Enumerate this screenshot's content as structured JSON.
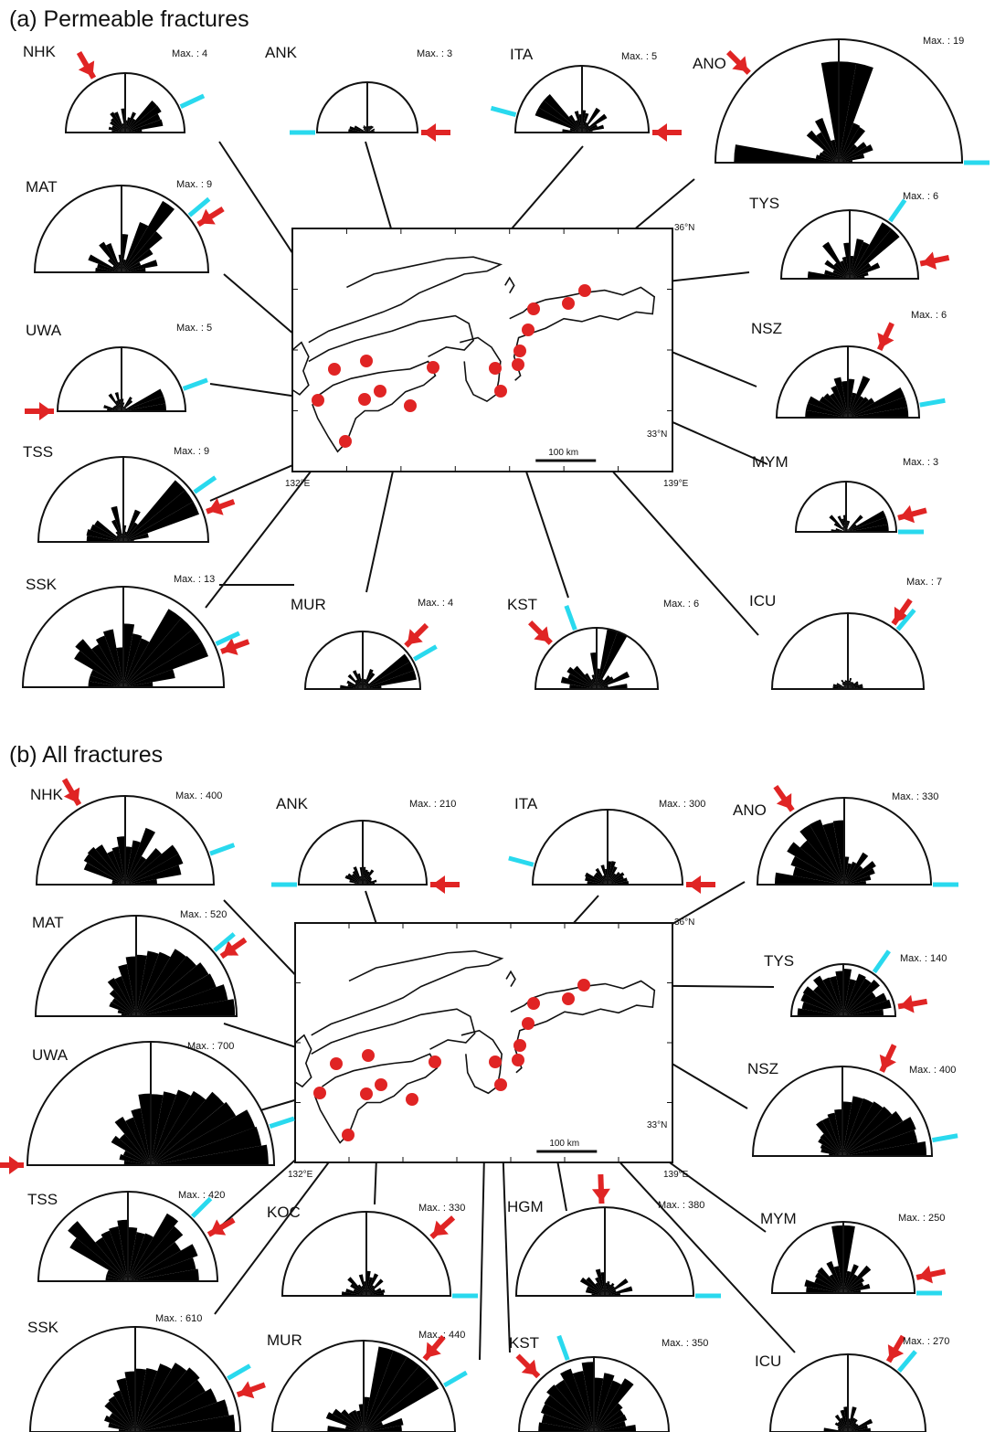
{
  "colors": {
    "arrow": "#e02424",
    "bar": "#29d9ee",
    "dot": "#e02424",
    "ink": "#111111"
  },
  "panels": [
    {
      "id": "a",
      "title": "(a)  Permeable fractures",
      "map": {
        "lat_top": "36°N",
        "lat_bottom": "33°N",
        "lon_left": "132°E",
        "lon_right": "139°E",
        "scale_label": "100 km"
      },
      "roses": [
        {
          "name": "NHK",
          "max": "Max. : 4"
        },
        {
          "name": "ANK",
          "max": "Max. : 3"
        },
        {
          "name": "ITA",
          "max": "Max. : 5"
        },
        {
          "name": "ANO",
          "max": "Max. : 19"
        },
        {
          "name": "MAT",
          "max": "Max. : 9"
        },
        {
          "name": "TYS",
          "max": "Max. : 6"
        },
        {
          "name": "UWA",
          "max": "Max. : 5"
        },
        {
          "name": "NSZ",
          "max": "Max. : 6"
        },
        {
          "name": "TSS",
          "max": "Max. : 9"
        },
        {
          "name": "MYM",
          "max": "Max. : 3"
        },
        {
          "name": "SSK",
          "max": "Max. : 13"
        },
        {
          "name": "MUR",
          "max": "Max. : 4"
        },
        {
          "name": "KST",
          "max": "Max. : 6"
        },
        {
          "name": "ICU",
          "max": "Max. : 7"
        }
      ]
    },
    {
      "id": "b",
      "title": "(b)  All fractures",
      "map": {
        "lat_top": "36°N",
        "lat_bottom": "33°N",
        "lon_left": "132°E",
        "lon_right": "139°E",
        "scale_label": "100 km"
      },
      "roses": [
        {
          "name": "NHK",
          "max": "Max. : 400"
        },
        {
          "name": "ANK",
          "max": "Max. : 210"
        },
        {
          "name": "ITA",
          "max": "Max. : 300"
        },
        {
          "name": "ANO",
          "max": "Max. : 330"
        },
        {
          "name": "MAT",
          "max": "Max. : 520"
        },
        {
          "name": "TYS",
          "max": "Max. : 140"
        },
        {
          "name": "UWA",
          "max": "Max. : 700"
        },
        {
          "name": "NSZ",
          "max": "Max. : 400"
        },
        {
          "name": "TSS",
          "max": "Max. : 420"
        },
        {
          "name": "KOC",
          "max": "Max. : 330"
        },
        {
          "name": "HGM",
          "max": "Max. : 380"
        },
        {
          "name": "MYM",
          "max": "Max. : 250"
        },
        {
          "name": "SSK",
          "max": "Max. : 610"
        },
        {
          "name": "MUR",
          "max": "Max. : 440"
        },
        {
          "name": "KST",
          "max": "Max. : 350"
        },
        {
          "name": "ICU",
          "max": "Max. : 270"
        }
      ]
    }
  ]
}
